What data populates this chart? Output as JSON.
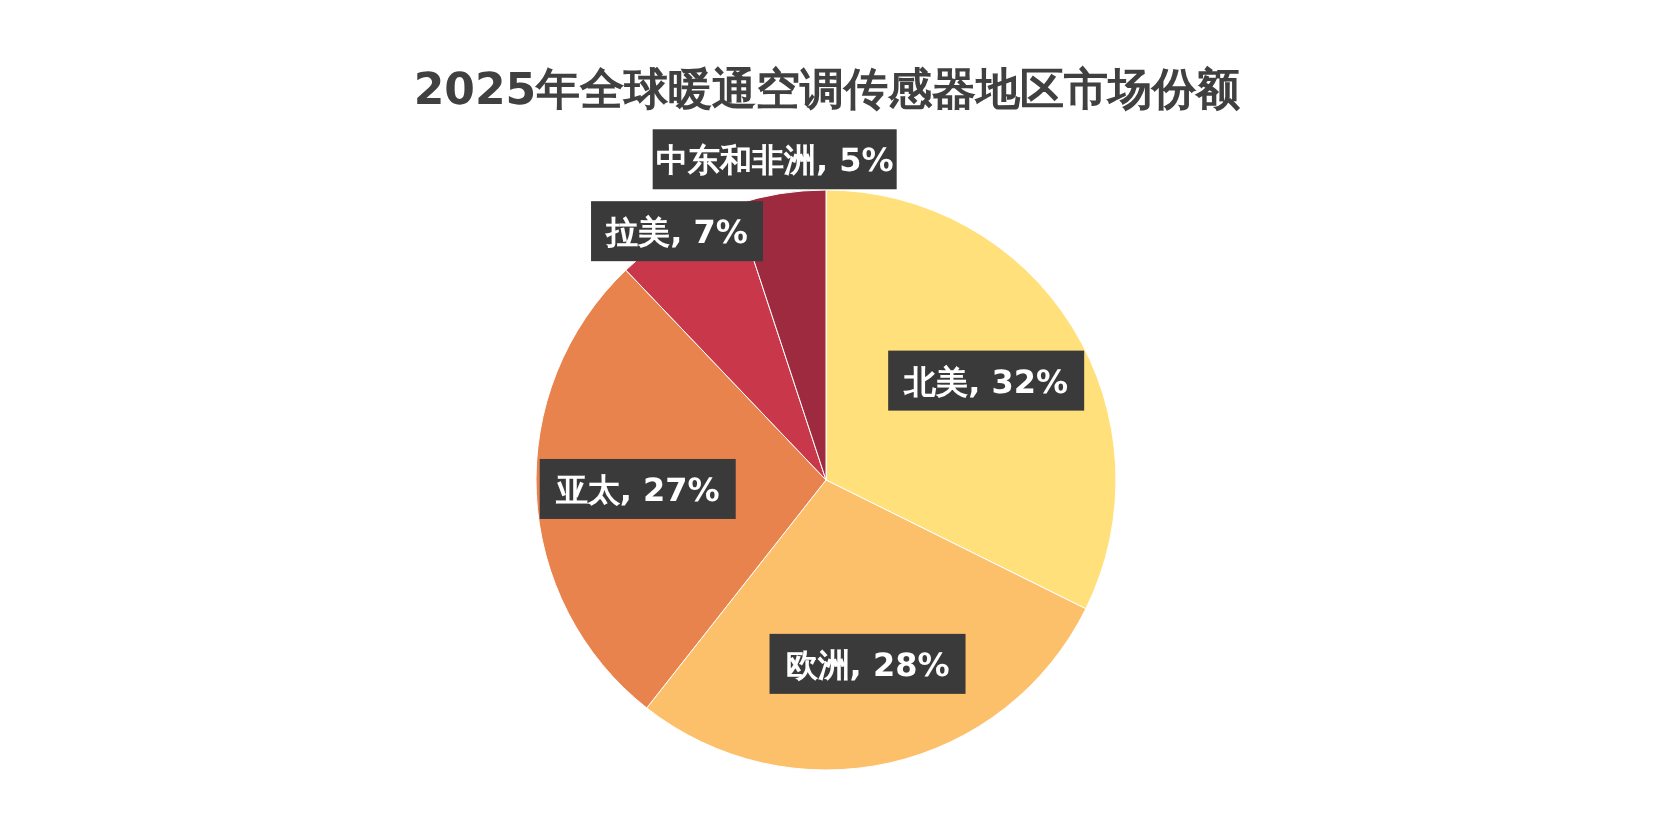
{
  "chart_data": {
    "type": "pie",
    "title": "2025年全球暖通空调传感器地区市场份额",
    "categories": [
      "北美",
      "欧洲",
      "亚太",
      "拉美",
      "中东和非洲"
    ],
    "values": [
      32,
      28,
      27,
      7,
      5
    ],
    "value_labels": [
      "32%",
      "28%",
      "27%",
      "7%",
      "5%"
    ],
    "colors": [
      "#ffe07a",
      "#fdc06a",
      "#e8834e",
      "#c8384a",
      "#9e2a40"
    ]
  }
}
